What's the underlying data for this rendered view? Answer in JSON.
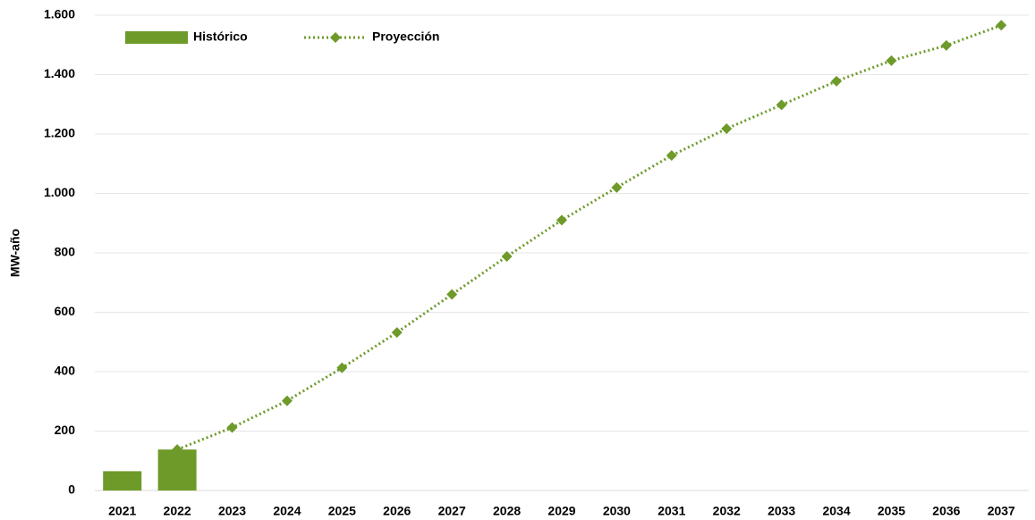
{
  "chart_data": {
    "type": "bar",
    "y_label": "MW-año",
    "categories": [
      "2021",
      "2022",
      "2023",
      "2024",
      "2025",
      "2026",
      "2027",
      "2028",
      "2029",
      "2030",
      "2031",
      "2032",
      "2033",
      "2034",
      "2035",
      "2036",
      "2037"
    ],
    "series": [
      {
        "name": "Histórico",
        "type": "bar",
        "color": "#6e9a2a",
        "values": [
          65,
          138,
          null,
          null,
          null,
          null,
          null,
          null,
          null,
          null,
          null,
          null,
          null,
          null,
          null,
          null,
          null
        ]
      },
      {
        "name": "Proyección",
        "type": "line",
        "color": "#6e9a2a",
        "values": [
          null,
          138,
          212,
          302,
          413,
          532,
          660,
          788,
          910,
          1020,
          1128,
          1218,
          1298,
          1378,
          1447,
          1498,
          1566
        ]
      }
    ],
    "ylim": [
      0,
      1600
    ],
    "yticks": [
      0,
      200,
      400,
      600,
      800,
      {
        "value": 1000,
        "label": "1.000"
      },
      {
        "value": 1200,
        "label": "1.200"
      },
      {
        "value": 1400,
        "label": "1.400"
      },
      {
        "value": 1600,
        "label": "1.600"
      }
    ],
    "grid": true,
    "legend": "upper left"
  }
}
